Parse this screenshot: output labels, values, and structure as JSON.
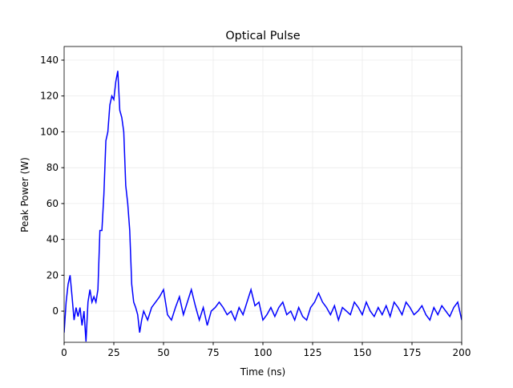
{
  "chart_data": {
    "type": "line",
    "title": "Optical Pulse",
    "x_label": "Time (ns)",
    "y_label": "Peak Power (W)",
    "x": [
      0,
      1,
      2,
      3,
      4,
      5,
      6,
      7,
      8,
      9,
      10,
      11,
      12,
      13,
      14,
      15,
      16,
      17,
      18,
      19,
      20,
      21,
      22,
      23,
      24,
      25,
      26,
      27,
      28,
      29,
      30,
      31,
      32,
      33,
      34,
      35,
      36,
      37,
      38,
      39,
      40,
      42,
      44,
      46,
      48,
      50,
      52,
      54,
      56,
      58,
      60,
      62,
      64,
      66,
      68,
      70,
      72,
      74,
      76,
      78,
      80,
      82,
      84,
      86,
      88,
      90,
      92,
      94,
      96,
      98,
      100,
      102,
      104,
      106,
      108,
      110,
      112,
      114,
      116,
      118,
      120,
      122,
      124,
      126,
      128,
      130,
      132,
      134,
      136,
      138,
      140,
      142,
      144,
      146,
      148,
      150,
      152,
      154,
      156,
      158,
      160,
      162,
      164,
      166,
      168,
      170,
      172,
      174,
      176,
      178,
      180,
      182,
      184,
      186,
      188,
      190,
      192,
      194,
      196,
      198,
      200
    ],
    "series": [
      {
        "name": "Optical Pulse",
        "color": "#0000ff",
        "values": [
          -12,
          5,
          15,
          20,
          8,
          -5,
          2,
          -3,
          2,
          -8,
          0,
          -17,
          5,
          12,
          5,
          8,
          5,
          12,
          45,
          45,
          65,
          95,
          100,
          115,
          120,
          118,
          128,
          134,
          112,
          108,
          100,
          70,
          60,
          45,
          15,
          5,
          2,
          -2,
          -12,
          -5,
          0,
          -5,
          2,
          5,
          8,
          12,
          -2,
          -5,
          2,
          8,
          -2,
          5,
          12,
          3,
          -5,
          2,
          -8,
          0,
          2,
          5,
          2,
          -2,
          0,
          -5,
          2,
          -2,
          5,
          12,
          3,
          5,
          -5,
          -2,
          2,
          -3,
          2,
          5,
          -2,
          0,
          -5,
          2,
          -3,
          -5,
          2,
          5,
          10,
          5,
          2,
          -2,
          3,
          -5,
          2,
          0,
          -2,
          5,
          2,
          -2,
          5,
          0,
          -3,
          2,
          -2,
          3,
          -3,
          5,
          2,
          -2,
          5,
          2,
          -2,
          0,
          3,
          -2,
          -5,
          2,
          -2,
          3,
          0,
          -3,
          2,
          5,
          -5
        ]
      }
    ],
    "xlim": [
      0,
      200
    ],
    "ylim": [
      -17.4,
      147.6
    ],
    "xticks": [
      0,
      25,
      50,
      75,
      100,
      125,
      150,
      175,
      200
    ],
    "yticks": [
      0,
      20,
      40,
      60,
      80,
      100,
      120,
      140
    ],
    "grid": true
  }
}
